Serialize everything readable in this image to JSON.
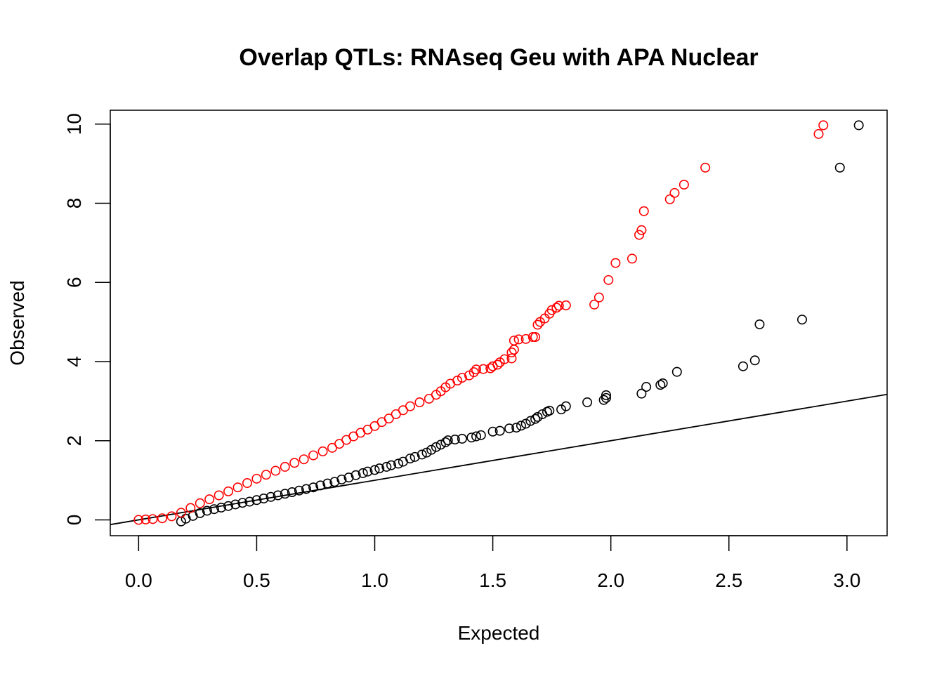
{
  "chart_data": {
    "type": "scatter",
    "title": "Overlap QTLs: RNAseq Geu with APA Nuclear",
    "xlabel": "Expected",
    "ylabel": "Observed",
    "xlim": [
      -0.12,
      3.17
    ],
    "ylim": [
      -0.4,
      10.35
    ],
    "x_ticks": [
      "0.0",
      "0.5",
      "1.0",
      "1.5",
      "2.0",
      "2.5",
      "3.0"
    ],
    "y_ticks": [
      "0",
      "2",
      "4",
      "6",
      "8",
      "10"
    ],
    "x_tick_values": [
      0,
      0.5,
      1.0,
      1.5,
      2.0,
      2.5,
      3.0
    ],
    "y_tick_values": [
      0,
      2,
      4,
      6,
      8,
      10
    ],
    "grid": false,
    "legend": "none",
    "reference_line": {
      "type": "abline",
      "intercept": 0,
      "slope": 1,
      "color": "#000000"
    },
    "series": [
      {
        "color": "#000000",
        "marker": "open-circle",
        "points": [
          [
            3.05,
            9.97
          ],
          [
            2.97,
            8.9
          ],
          [
            2.81,
            5.06
          ],
          [
            2.63,
            4.94
          ],
          [
            2.61,
            4.03
          ],
          [
            2.56,
            3.88
          ],
          [
            2.28,
            3.74
          ],
          [
            2.22,
            3.45
          ],
          [
            2.21,
            3.41
          ],
          [
            2.15,
            3.36
          ],
          [
            2.13,
            3.19
          ],
          [
            1.98,
            3.15
          ],
          [
            1.98,
            3.08
          ],
          [
            1.97,
            3.03
          ],
          [
            1.9,
            2.97
          ],
          [
            1.81,
            2.87
          ],
          [
            1.79,
            2.79
          ],
          [
            1.74,
            2.76
          ],
          [
            1.73,
            2.73
          ],
          [
            1.71,
            2.67
          ],
          [
            1.69,
            2.6
          ],
          [
            1.68,
            2.55
          ],
          [
            1.66,
            2.5
          ],
          [
            1.64,
            2.43
          ],
          [
            1.62,
            2.38
          ],
          [
            1.6,
            2.33
          ],
          [
            1.57,
            2.31
          ],
          [
            1.53,
            2.25
          ],
          [
            1.5,
            2.23
          ],
          [
            1.45,
            2.14
          ],
          [
            1.43,
            2.11
          ],
          [
            1.41,
            2.08
          ],
          [
            1.37,
            2.05
          ],
          [
            1.34,
            2.03
          ],
          [
            1.31,
            2.01
          ],
          [
            1.3,
            1.96
          ],
          [
            1.28,
            1.9
          ],
          [
            1.26,
            1.84
          ],
          [
            1.24,
            1.77
          ],
          [
            1.22,
            1.7
          ],
          [
            1.2,
            1.65
          ],
          [
            1.17,
            1.59
          ],
          [
            1.15,
            1.55
          ],
          [
            1.12,
            1.47
          ],
          [
            1.1,
            1.42
          ],
          [
            1.07,
            1.38
          ],
          [
            1.05,
            1.34
          ],
          [
            1.02,
            1.3
          ],
          [
            1.0,
            1.26
          ],
          [
            0.97,
            1.22
          ],
          [
            0.95,
            1.18
          ],
          [
            0.92,
            1.13
          ],
          [
            0.89,
            1.07
          ],
          [
            0.86,
            1.02
          ],
          [
            0.83,
            0.96
          ],
          [
            0.8,
            0.92
          ],
          [
            0.77,
            0.87
          ],
          [
            0.74,
            0.82
          ],
          [
            0.71,
            0.78
          ],
          [
            0.68,
            0.74
          ],
          [
            0.65,
            0.7
          ],
          [
            0.62,
            0.66
          ],
          [
            0.59,
            0.62
          ],
          [
            0.56,
            0.58
          ],
          [
            0.53,
            0.54
          ],
          [
            0.5,
            0.5
          ],
          [
            0.47,
            0.46
          ],
          [
            0.44,
            0.43
          ],
          [
            0.41,
            0.39
          ],
          [
            0.38,
            0.35
          ],
          [
            0.35,
            0.31
          ],
          [
            0.32,
            0.27
          ],
          [
            0.29,
            0.23
          ],
          [
            0.26,
            0.17
          ],
          [
            0.23,
            0.1
          ],
          [
            0.2,
            0.03
          ],
          [
            0.18,
            -0.04
          ]
        ]
      },
      {
        "color": "#ff0000",
        "marker": "open-circle",
        "points": [
          [
            2.9,
            9.97
          ],
          [
            2.88,
            9.75
          ],
          [
            2.4,
            8.9
          ],
          [
            2.31,
            8.47
          ],
          [
            2.27,
            8.26
          ],
          [
            2.25,
            8.1
          ],
          [
            2.14,
            7.8
          ],
          [
            2.13,
            7.32
          ],
          [
            2.12,
            7.2
          ],
          [
            2.09,
            6.6
          ],
          [
            2.02,
            6.49
          ],
          [
            1.99,
            6.06
          ],
          [
            1.95,
            5.62
          ],
          [
            1.93,
            5.44
          ],
          [
            1.81,
            5.42
          ],
          [
            1.78,
            5.41
          ],
          [
            1.77,
            5.36
          ],
          [
            1.75,
            5.3
          ],
          [
            1.74,
            5.21
          ],
          [
            1.72,
            5.09
          ],
          [
            1.7,
            5.0
          ],
          [
            1.69,
            4.93
          ],
          [
            1.68,
            4.62
          ],
          [
            1.67,
            4.62
          ],
          [
            1.64,
            4.57
          ],
          [
            1.61,
            4.56
          ],
          [
            1.59,
            4.53
          ],
          [
            1.59,
            4.3
          ],
          [
            1.58,
            4.23
          ],
          [
            1.58,
            4.08
          ],
          [
            1.55,
            4.06
          ],
          [
            1.53,
            3.98
          ],
          [
            1.52,
            3.92
          ],
          [
            1.5,
            3.88
          ],
          [
            1.49,
            3.83
          ],
          [
            1.46,
            3.81
          ],
          [
            1.43,
            3.8
          ],
          [
            1.42,
            3.73
          ],
          [
            1.4,
            3.65
          ],
          [
            1.37,
            3.59
          ],
          [
            1.35,
            3.52
          ],
          [
            1.32,
            3.44
          ],
          [
            1.3,
            3.35
          ],
          [
            1.28,
            3.25
          ],
          [
            1.26,
            3.16
          ],
          [
            1.23,
            3.06
          ],
          [
            1.19,
            2.97
          ],
          [
            1.15,
            2.87
          ],
          [
            1.12,
            2.77
          ],
          [
            1.09,
            2.67
          ],
          [
            1.06,
            2.56
          ],
          [
            1.03,
            2.47
          ],
          [
            1.0,
            2.37
          ],
          [
            0.97,
            2.28
          ],
          [
            0.94,
            2.2
          ],
          [
            0.91,
            2.11
          ],
          [
            0.88,
            2.02
          ],
          [
            0.85,
            1.92
          ],
          [
            0.82,
            1.82
          ],
          [
            0.78,
            1.73
          ],
          [
            0.74,
            1.63
          ],
          [
            0.7,
            1.53
          ],
          [
            0.66,
            1.44
          ],
          [
            0.62,
            1.34
          ],
          [
            0.58,
            1.24
          ],
          [
            0.54,
            1.14
          ],
          [
            0.5,
            1.04
          ],
          [
            0.46,
            0.93
          ],
          [
            0.42,
            0.82
          ],
          [
            0.38,
            0.72
          ],
          [
            0.34,
            0.62
          ],
          [
            0.3,
            0.52
          ],
          [
            0.26,
            0.42
          ],
          [
            0.22,
            0.3
          ],
          [
            0.18,
            0.18
          ],
          [
            0.14,
            0.09
          ],
          [
            0.1,
            0.04
          ],
          [
            0.06,
            0.02
          ],
          [
            0.03,
            0.01
          ],
          [
            0.0,
            0.0
          ]
        ]
      }
    ]
  }
}
